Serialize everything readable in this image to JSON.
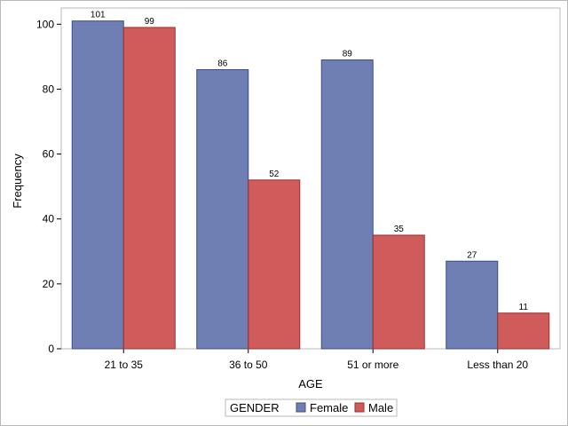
{
  "chart_data": {
    "type": "bar",
    "xlabel": "AGE",
    "ylabel": "Frequency",
    "categories": [
      "21 to 35",
      "36 to 50",
      "51 or more",
      "Less than 20"
    ],
    "series": [
      {
        "name": "Female",
        "values": [
          101,
          86,
          89,
          27
        ],
        "color": "#6f7eb3",
        "edge": "#3d4d8a"
      },
      {
        "name": "Male",
        "values": [
          99,
          52,
          35,
          11
        ],
        "color": "#d05b5b",
        "edge": "#9b2f2f"
      }
    ],
    "ylim": [
      0,
      100
    ],
    "yticks": [
      0,
      20,
      40,
      60,
      80,
      100
    ],
    "grid": false,
    "legend": {
      "title": "GENDER",
      "position": "bottom-center"
    },
    "data_labels": true
  }
}
